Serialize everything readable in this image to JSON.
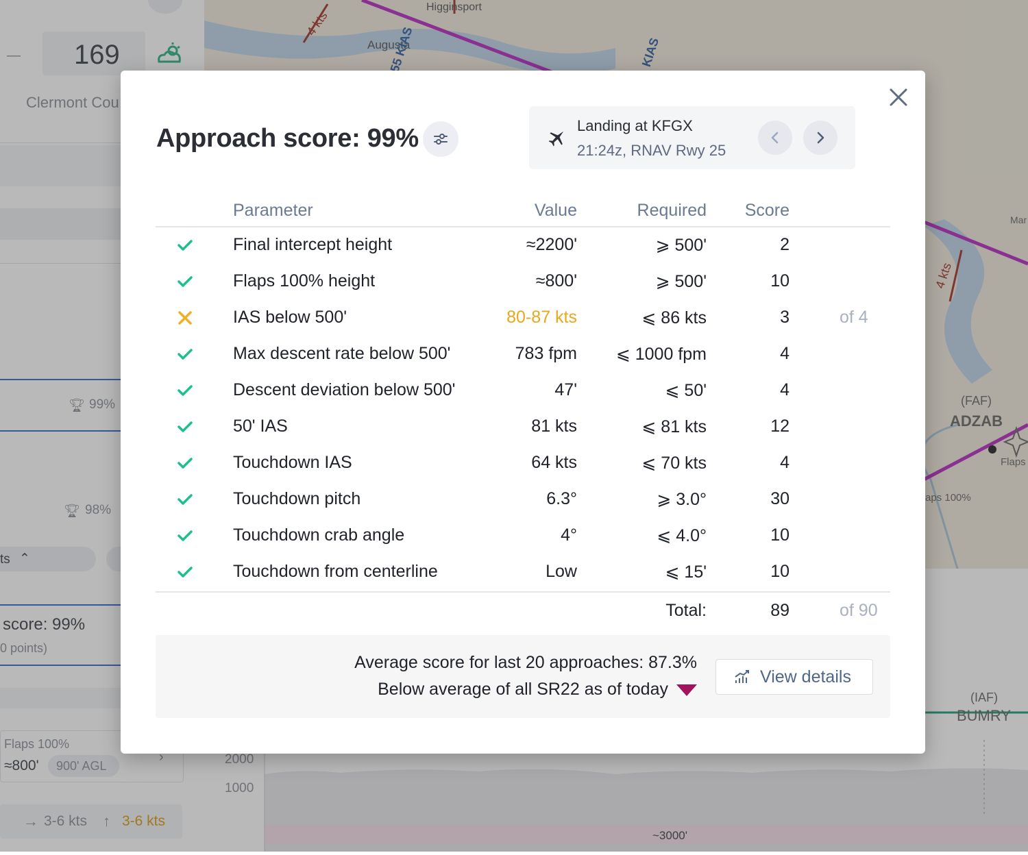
{
  "background": {
    "left": {
      "temperature": "169",
      "location": "Clermont Cou",
      "card1_score": "99%",
      "card2_score": "98%",
      "collapse_label": "ts",
      "score_title": "score: 99%",
      "score_points": "0 points)",
      "flaps_label": "Flaps 100%",
      "flaps_value": "≈800'",
      "flaps_agl": "900' AGL",
      "wind1": "3-6 kts",
      "wind2": "3-6 kts"
    },
    "map": {
      "labels": [
        "4 kts",
        "Higginsport",
        "Augusta",
        "55 KIAS",
        "KIAS",
        "4 kts",
        "(FAF)",
        "ADZAB",
        "Flaps",
        "aps 100%",
        "Mar",
        "(IAF)",
        "BUMRY"
      ]
    },
    "chart": {
      "ticks": [
        "2000",
        "1000"
      ],
      "annotation": "~3000'"
    }
  },
  "modal": {
    "title": "Approach score: 99%",
    "landing": {
      "title": "Landing at KFGX",
      "subtitle": "21:24z, RNAV Rwy 25"
    },
    "columns": {
      "parameter": "Parameter",
      "value": "Value",
      "required": "Required",
      "score": "Score"
    },
    "rows": [
      {
        "status": "pass",
        "parameter": "Final intercept height",
        "value": "≈2200'",
        "required": "⩾ 500'",
        "score": "2",
        "of": ""
      },
      {
        "status": "pass",
        "parameter": "Flaps 100% height",
        "value": "≈800'",
        "required": "⩾ 500'",
        "score": "10",
        "of": ""
      },
      {
        "status": "fail",
        "parameter": "IAS below 500'",
        "value": "80-87 kts",
        "required": "⩽ 86 kts",
        "score": "3",
        "of": "of 4"
      },
      {
        "status": "pass",
        "parameter": "Max descent rate below 500'",
        "value": "783 fpm",
        "required": "⩽ 1000 fpm",
        "score": "4",
        "of": ""
      },
      {
        "status": "pass",
        "parameter": "Descent deviation below 500'",
        "value": "47'",
        "required": "⩽ 50'",
        "score": "4",
        "of": ""
      },
      {
        "status": "pass",
        "parameter": "50' IAS",
        "value": "81 kts",
        "required": "⩽ 81 kts",
        "score": "12",
        "of": ""
      },
      {
        "status": "pass",
        "parameter": "Touchdown IAS",
        "value": "64 kts",
        "required": "⩽ 70 kts",
        "score": "4",
        "of": ""
      },
      {
        "status": "pass",
        "parameter": "Touchdown pitch",
        "value": "6.3°",
        "required": "⩾ 3.0°",
        "score": "30",
        "of": ""
      },
      {
        "status": "pass",
        "parameter": "Touchdown crab angle",
        "value": "4°",
        "required": "⩽ 4.0°",
        "score": "10",
        "of": ""
      },
      {
        "status": "pass",
        "parameter": "Touchdown from centerline",
        "value": "Low",
        "required": "⩽ 15'",
        "score": "10",
        "of": ""
      }
    ],
    "total": {
      "label": "Total:",
      "score": "89",
      "of": "of 90"
    },
    "footer": {
      "average_text": "Average score for last 20 approaches: 87.3%",
      "comparison_text": "Below average of all SR22 as of today",
      "button_label": "View details"
    },
    "colors": {
      "pass": "#1dbf8e",
      "fail": "#f0b02a",
      "trend_down": "#a3125d",
      "route": "#b62ac0"
    }
  }
}
